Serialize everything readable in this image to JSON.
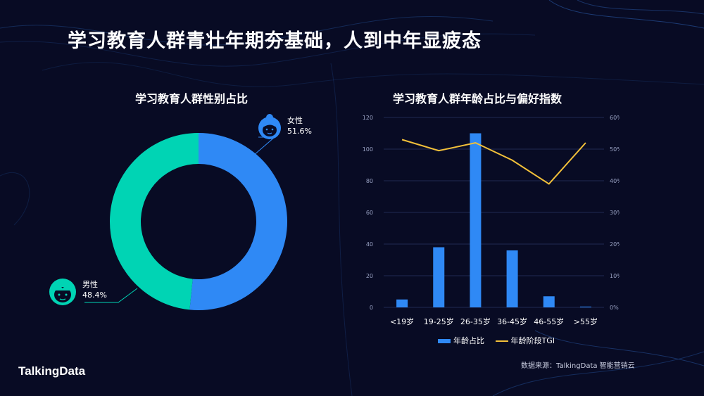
{
  "page": {
    "title": "学习教育人群青壮年期夯基础，人到中年显疲态",
    "source": "数据来源：TalkingData 智能营销云",
    "logo": "TalkingData"
  },
  "colors": {
    "background": "#080b24",
    "female": "#2f89f5",
    "male": "#00d4b4",
    "bar": "#2f89f5",
    "line": "#f3c13a",
    "axis_text": "#9aa3c4"
  },
  "chart_data": [
    {
      "type": "pie",
      "style": "donut",
      "title": "学习教育人群性别占比",
      "slices": [
        {
          "label": "女性",
          "value": 51.6,
          "value_label": "51.6%",
          "icon": "female-face-icon"
        },
        {
          "label": "男性",
          "value": 48.4,
          "value_label": "48.4%",
          "icon": "male-face-icon"
        }
      ]
    },
    {
      "type": "bar",
      "title": "学习教育人群年龄占比与偏好指数",
      "categories": [
        "<19岁",
        "19-25岁",
        "26-35岁",
        "36-45岁",
        "46-55岁",
        ">55岁"
      ],
      "ylim": [
        0,
        120
      ],
      "yticks": [
        0,
        20,
        40,
        60,
        80,
        100,
        120
      ],
      "y2lim": [
        0,
        60
      ],
      "y2ticks": [
        "0%",
        "10%",
        "20%",
        "30%",
        "40%",
        "50%",
        "60%"
      ],
      "grid": true,
      "legend_position": "bottom",
      "series": [
        {
          "name": "年龄占比",
          "type": "bar",
          "axis": "left",
          "values": [
            5,
            38,
            110,
            36,
            7,
            0.5
          ]
        },
        {
          "name": "年龄阶段TGI",
          "type": "line",
          "axis": "right",
          "values": [
            53,
            49.5,
            52,
            46.5,
            39,
            52
          ]
        }
      ]
    }
  ]
}
